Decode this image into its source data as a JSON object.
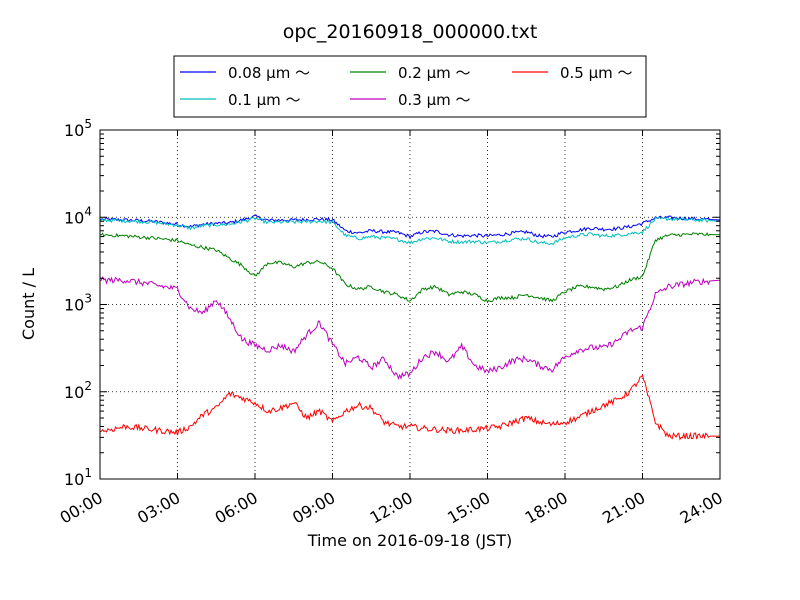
{
  "chart_data": {
    "type": "line",
    "title": "opc_20160918_000000.txt",
    "xlabel": "Time on 2016-09-18 (JST)",
    "ylabel": "Count / L",
    "yscale": "log",
    "xlim": [
      "00:00",
      "24:00"
    ],
    "ylim": [
      10,
      100000
    ],
    "grid": true,
    "legend_position": "top-center",
    "x_tick_labels": [
      "00:00",
      "03:00",
      "06:00",
      "09:00",
      "12:00",
      "15:00",
      "18:00",
      "21:00",
      "24:00"
    ],
    "y_ticks": [
      {
        "value": 10,
        "base": "10",
        "exp": "1"
      },
      {
        "value": 100,
        "base": "10",
        "exp": "2"
      },
      {
        "value": 1000,
        "base": "10",
        "exp": "3"
      },
      {
        "value": 10000,
        "base": "10",
        "exp": "4"
      },
      {
        "value": 100000,
        "base": "10",
        "exp": "5"
      }
    ],
    "x": [
      "00:00",
      "01:00",
      "02:00",
      "03:00",
      "03:30",
      "04:00",
      "04:30",
      "05:00",
      "05:30",
      "06:00",
      "06:30",
      "07:00",
      "07:30",
      "08:00",
      "08:30",
      "09:00",
      "09:30",
      "10:00",
      "10:30",
      "11:00",
      "11:30",
      "12:00",
      "12:30",
      "13:00",
      "13:30",
      "14:00",
      "14:30",
      "15:00",
      "15:30",
      "16:00",
      "16:30",
      "17:00",
      "17:30",
      "18:00",
      "18:30",
      "19:00",
      "19:30",
      "20:00",
      "20:30",
      "21:00",
      "21:30",
      "22:00",
      "23:00",
      "24:00"
    ],
    "series": [
      {
        "name": "0.08 μm ～",
        "color": "#0000ff",
        "values": [
          9500,
          9300,
          9000,
          8300,
          7800,
          8300,
          8500,
          8600,
          9300,
          10200,
          9200,
          9300,
          9300,
          9400,
          9500,
          9300,
          7000,
          6600,
          7000,
          6800,
          6700,
          6000,
          6800,
          6900,
          6300,
          6100,
          6200,
          6100,
          6300,
          6600,
          6800,
          6100,
          6000,
          6800,
          7100,
          7500,
          7300,
          7400,
          7800,
          8500,
          9800,
          9900,
          9600,
          9300
        ]
      },
      {
        "name": "0.1 μm ～",
        "color": "#00bfbf",
        "values": [
          9300,
          9100,
          8800,
          8100,
          7500,
          8000,
          8200,
          8300,
          8900,
          9700,
          8700,
          8800,
          8800,
          8900,
          9000,
          8700,
          6200,
          5700,
          6000,
          5800,
          5600,
          5100,
          5700,
          5800,
          5300,
          5200,
          5300,
          5100,
          5300,
          5600,
          5700,
          5100,
          5000,
          5800,
          6200,
          6400,
          6100,
          6200,
          6500,
          6800,
          9500,
          9600,
          9300,
          9000
        ]
      },
      {
        "name": "0.2 μm ～",
        "color": "#008000",
        "values": [
          6300,
          6100,
          5800,
          5400,
          4800,
          4500,
          4200,
          3400,
          2800,
          2100,
          3000,
          3000,
          2700,
          3000,
          3100,
          2600,
          1700,
          1500,
          1600,
          1400,
          1300,
          1100,
          1500,
          1600,
          1300,
          1400,
          1300,
          1100,
          1200,
          1200,
          1300,
          1200,
          1100,
          1400,
          1600,
          1600,
          1500,
          1600,
          1900,
          2100,
          5500,
          6200,
          6400,
          6300
        ]
      },
      {
        "name": "0.3 μm ～",
        "color": "#bf00bf",
        "values": [
          1900,
          1900,
          1700,
          1500,
          900,
          800,
          1150,
          700,
          400,
          340,
          300,
          340,
          290,
          450,
          620,
          350,
          210,
          250,
          190,
          240,
          150,
          160,
          250,
          290,
          220,
          330,
          200,
          170,
          190,
          230,
          240,
          200,
          180,
          250,
          300,
          320,
          320,
          380,
          500,
          550,
          1300,
          1600,
          1800,
          1900
        ]
      },
      {
        "name": "0.5 μm ～",
        "color": "#ff0000",
        "values": [
          35,
          40,
          37,
          34,
          40,
          55,
          65,
          95,
          85,
          75,
          60,
          65,
          75,
          50,
          60,
          45,
          60,
          70,
          65,
          45,
          40,
          40,
          38,
          37,
          36,
          36,
          37,
          38,
          40,
          45,
          50,
          45,
          42,
          45,
          50,
          60,
          70,
          80,
          100,
          150,
          45,
          31,
          31,
          31
        ]
      }
    ]
  }
}
